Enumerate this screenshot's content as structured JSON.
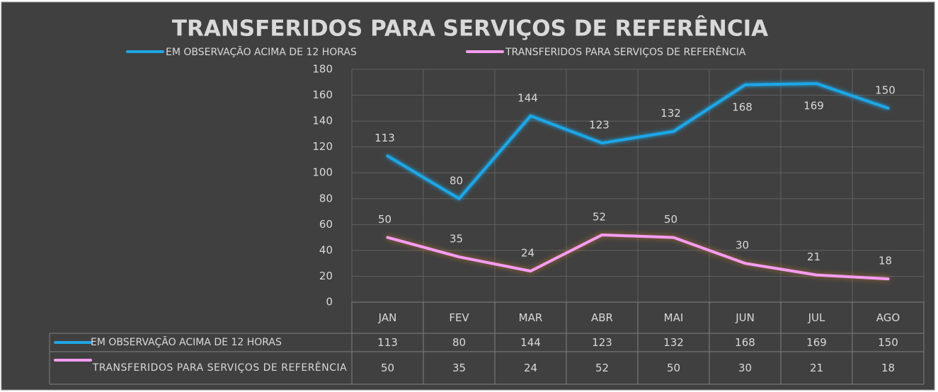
{
  "chart_data": {
    "type": "line",
    "title": "TRANSFERIDOS PARA SERVIÇOS DE REFERÊNCIA",
    "categories": [
      "JAN",
      "FEV",
      "MAR",
      "ABR",
      "MAI",
      "JUN",
      "JUL",
      "AGO"
    ],
    "series": [
      {
        "name": "EM OBSERVAÇÃO ACIMA DE 12 HORAS",
        "color": "#1ea7e8",
        "values": [
          113,
          80,
          144,
          123,
          132,
          168,
          169,
          150
        ]
      },
      {
        "name": "TRANSFERIDOS PARA SERVIÇOS DE REFERÊNCIA",
        "color": "#f79cf2",
        "values": [
          50,
          35,
          24,
          52,
          50,
          30,
          21,
          18
        ]
      }
    ],
    "ylim": [
      0,
      180
    ],
    "yticks": [
      0,
      20,
      40,
      60,
      80,
      100,
      120,
      140,
      160,
      180
    ],
    "grid": true,
    "legend": "top",
    "data_table": true
  }
}
